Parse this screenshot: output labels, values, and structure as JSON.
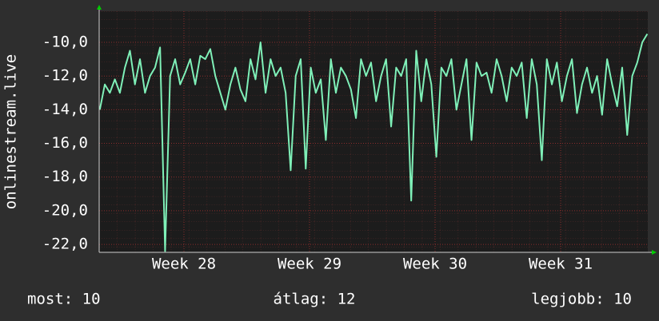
{
  "chart_data": {
    "type": "line",
    "ylabel": "onlinestream.live",
    "x": [
      27.33,
      27.37,
      27.41,
      27.45,
      27.49,
      27.53,
      27.57,
      27.61,
      27.65,
      27.69,
      27.73,
      27.77,
      27.81,
      27.85,
      27.89,
      27.93,
      27.97,
      28.01,
      28.05,
      28.09,
      28.13,
      28.17,
      28.21,
      28.25,
      28.29,
      28.33,
      28.37,
      28.41,
      28.45,
      28.49,
      28.53,
      28.57,
      28.61,
      28.65,
      28.69,
      28.73,
      28.77,
      28.81,
      28.85,
      28.89,
      28.93,
      28.97,
      29.01,
      29.05,
      29.09,
      29.13,
      29.17,
      29.21,
      29.25,
      29.29,
      29.33,
      29.37,
      29.41,
      29.45,
      29.49,
      29.53,
      29.57,
      29.61,
      29.65,
      29.69,
      29.73,
      29.77,
      29.81,
      29.85,
      29.89,
      29.93,
      29.97,
      30.01,
      30.05,
      30.09,
      30.13,
      30.17,
      30.21,
      30.25,
      30.29,
      30.33,
      30.37,
      30.41,
      30.45,
      30.49,
      30.53,
      30.57,
      30.61,
      30.65,
      30.69,
      30.73,
      30.77,
      30.81,
      30.85,
      30.89,
      30.93,
      30.97,
      31.01,
      31.05,
      31.09,
      31.13,
      31.17,
      31.21,
      31.25,
      31.29,
      31.33,
      31.37,
      31.41,
      31.45,
      31.49,
      31.53,
      31.57,
      31.61,
      31.65,
      31.69
    ],
    "series": [
      {
        "color": "#7ff0b8",
        "values": [
          -14,
          -12.5,
          -13,
          -12.2,
          -13,
          -11.5,
          -10.5,
          -12.5,
          -11,
          -13,
          -12,
          -11.5,
          -10.3,
          -22.4,
          -12,
          -11,
          -12.5,
          -11.8,
          -11,
          -12.5,
          -10.8,
          -11,
          -10.4,
          -12,
          -13,
          -14,
          -12.5,
          -11.5,
          -12.8,
          -13.5,
          -11,
          -12.2,
          -10,
          -13,
          -11,
          -12,
          -11.5,
          -13,
          -17.6,
          -12,
          -11,
          -17.5,
          -11.5,
          -13,
          -12.2,
          -15.8,
          -11,
          -13,
          -11.5,
          -12,
          -12.8,
          -14.5,
          -11,
          -12,
          -11.2,
          -13.5,
          -12,
          -11,
          -15,
          -11.5,
          -12,
          -11,
          -19.4,
          -10.5,
          -13.5,
          -11,
          -12.5,
          -16.8,
          -11.5,
          -12,
          -11,
          -14,
          -12.5,
          -11,
          -15.8,
          -11.2,
          -12,
          -11.8,
          -13,
          -11,
          -12,
          -13.5,
          -11.5,
          -12,
          -11.2,
          -14.5,
          -11,
          -12.5,
          -17,
          -11,
          -12.5,
          -11.2,
          -13.5,
          -12,
          -11,
          -14.2,
          -12.5,
          -11.5,
          -13,
          -12,
          -14.3,
          -11,
          -12.5,
          -13.8,
          -11.5,
          -15.5,
          -12,
          -11.2,
          -10,
          -9.5
        ]
      }
    ],
    "xlim": [
      27.325,
      31.694
    ],
    "xticks": [
      {
        "value": 28,
        "label": "Week 28"
      },
      {
        "value": 29,
        "label": "Week 29"
      },
      {
        "value": 30,
        "label": "Week 30"
      },
      {
        "value": 31,
        "label": "Week 31"
      }
    ],
    "ylim": [
      -22.47,
      -8.15
    ],
    "yticks": [
      {
        "value": -22,
        "label": "-22,0"
      },
      {
        "value": -20,
        "label": "-20,0"
      },
      {
        "value": -18,
        "label": "-18,0"
      },
      {
        "value": -16,
        "label": "-16,0"
      },
      {
        "value": -14,
        "label": "-14,0"
      },
      {
        "value": -12,
        "label": "-12,0"
      },
      {
        "value": -10,
        "label": "-10,0"
      }
    ],
    "grid": true,
    "stats": [
      "most: 10",
      "átlag: 12",
      "legjobb: 10"
    ]
  }
}
